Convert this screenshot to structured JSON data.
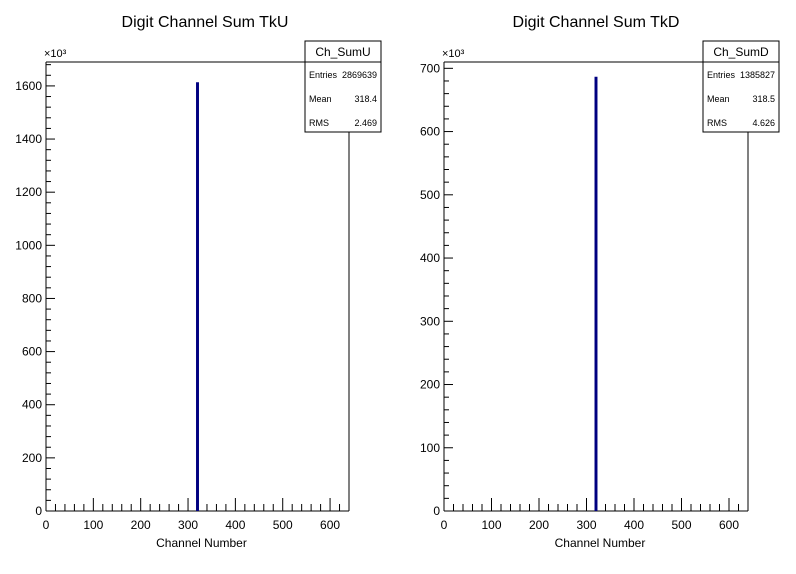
{
  "chart_data": [
    {
      "type": "bar",
      "title": "Digit Channel Sum TkU",
      "xlabel": "Channel Number",
      "ylabel": "",
      "y_multiplier_label": "×10³",
      "xlim": [
        0,
        640
      ],
      "ylim": [
        0,
        1690
      ],
      "xticks": [
        0,
        100,
        200,
        300,
        400,
        500,
        600
      ],
      "yticks": [
        0,
        200,
        400,
        600,
        800,
        1000,
        1200,
        1400,
        1600
      ],
      "bins": [
        {
          "x": 320,
          "value": 1610
        }
      ],
      "line_color": "#000080",
      "stats": {
        "name": "Ch_SumU",
        "rows": [
          {
            "label": "Entries",
            "value": "2869639"
          },
          {
            "label": "Mean",
            "value": "318.4"
          },
          {
            "label": "RMS",
            "value": "2.469"
          }
        ]
      }
    },
    {
      "type": "bar",
      "title": "Digit Channel Sum TkD",
      "xlabel": "Channel Number",
      "ylabel": "",
      "y_multiplier_label": "×10³",
      "xlim": [
        0,
        640
      ],
      "ylim": [
        0,
        710
      ],
      "xticks": [
        0,
        100,
        200,
        300,
        400,
        500,
        600
      ],
      "yticks": [
        0,
        100,
        200,
        300,
        400,
        500,
        600,
        700
      ],
      "bins": [
        {
          "x": 320,
          "value": 685
        }
      ],
      "line_color": "#000080",
      "stats": {
        "name": "Ch_SumD",
        "rows": [
          {
            "label": "Entries",
            "value": "1385827"
          },
          {
            "label": "Mean",
            "value": "318.5"
          },
          {
            "label": "RMS",
            "value": "4.626"
          }
        ]
      }
    }
  ]
}
